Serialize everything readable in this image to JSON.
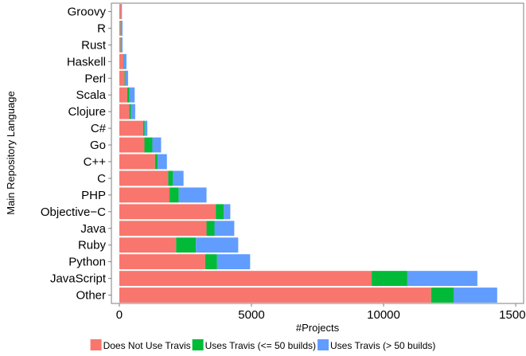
{
  "chart_data": {
    "type": "bar",
    "orientation": "horizontal",
    "stacked": true,
    "title": "",
    "xlabel": "#Projects",
    "ylabel": "Main Repository Language",
    "xlim": [
      -300,
      15300
    ],
    "xticks": [
      0,
      5000,
      10000,
      15000
    ],
    "grid": false,
    "legend_position": "bottom",
    "categories": [
      "Groovy",
      "R",
      "Rust",
      "Haskell",
      "Perl",
      "Scala",
      "Clojure",
      "C#",
      "Go",
      "C++",
      "C",
      "PHP",
      "Objective−C",
      "Java",
      "Ruby",
      "Python",
      "JavaScript",
      "Other"
    ],
    "series": [
      {
        "name": "Does Not Use Travis",
        "color": "#F8766D",
        "values": [
          60,
          50,
          50,
          150,
          200,
          300,
          380,
          900,
          950,
          1350,
          1850,
          1900,
          3650,
          3300,
          2150,
          3250,
          9550,
          11800
        ]
      },
      {
        "name": "Uses Travis (<= 50 builds)",
        "color": "#00BA38",
        "values": [
          5,
          10,
          10,
          20,
          30,
          80,
          60,
          60,
          300,
          100,
          180,
          350,
          300,
          300,
          750,
          450,
          1350,
          850
        ]
      },
      {
        "name": "Uses Travis (> 50 builds)",
        "color": "#619CFF",
        "values": [
          35,
          60,
          60,
          100,
          100,
          200,
          160,
          100,
          330,
          350,
          400,
          1050,
          250,
          750,
          1600,
          1250,
          2650,
          1650
        ]
      }
    ]
  }
}
